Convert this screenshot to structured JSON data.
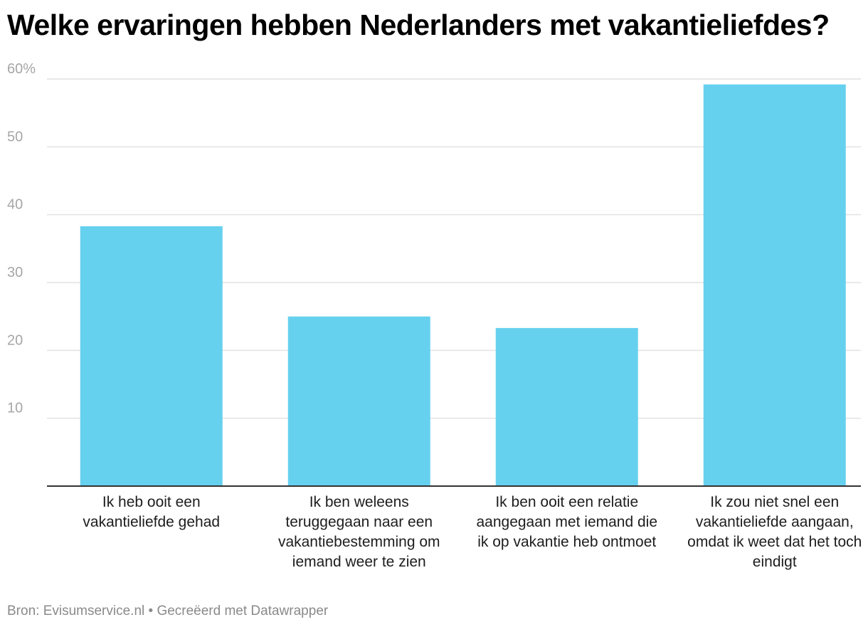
{
  "chart_data": {
    "type": "bar",
    "title": "Welke ervaringen hebben Nederlanders met vakantieliefdes?",
    "categories": [
      "Ik heb ooit een vakantieliefde gehad",
      "Ik ben weleens teruggegaan naar een vakantiebestemming om iemand weer te zien",
      "Ik ben ooit een relatie aangegaan met iemand die ik op vakantie heb ontmoet",
      "Ik zou niet snel een vakantieliefde aangaan, omdat ik weet dat het toch eindigt"
    ],
    "values": [
      38.3,
      25.0,
      23.3,
      59.2
    ],
    "ylim": [
      0,
      60
    ],
    "yticks": [
      10,
      20,
      30,
      40,
      50,
      60
    ],
    "ytick_labels": [
      "10",
      "20",
      "30",
      "40",
      "50",
      "60%"
    ],
    "grid": true,
    "bar_color": "#66d0ef"
  },
  "footer": {
    "source": "Bron: Evisumservice.nl • Gecreëerd met Datawrapper"
  }
}
